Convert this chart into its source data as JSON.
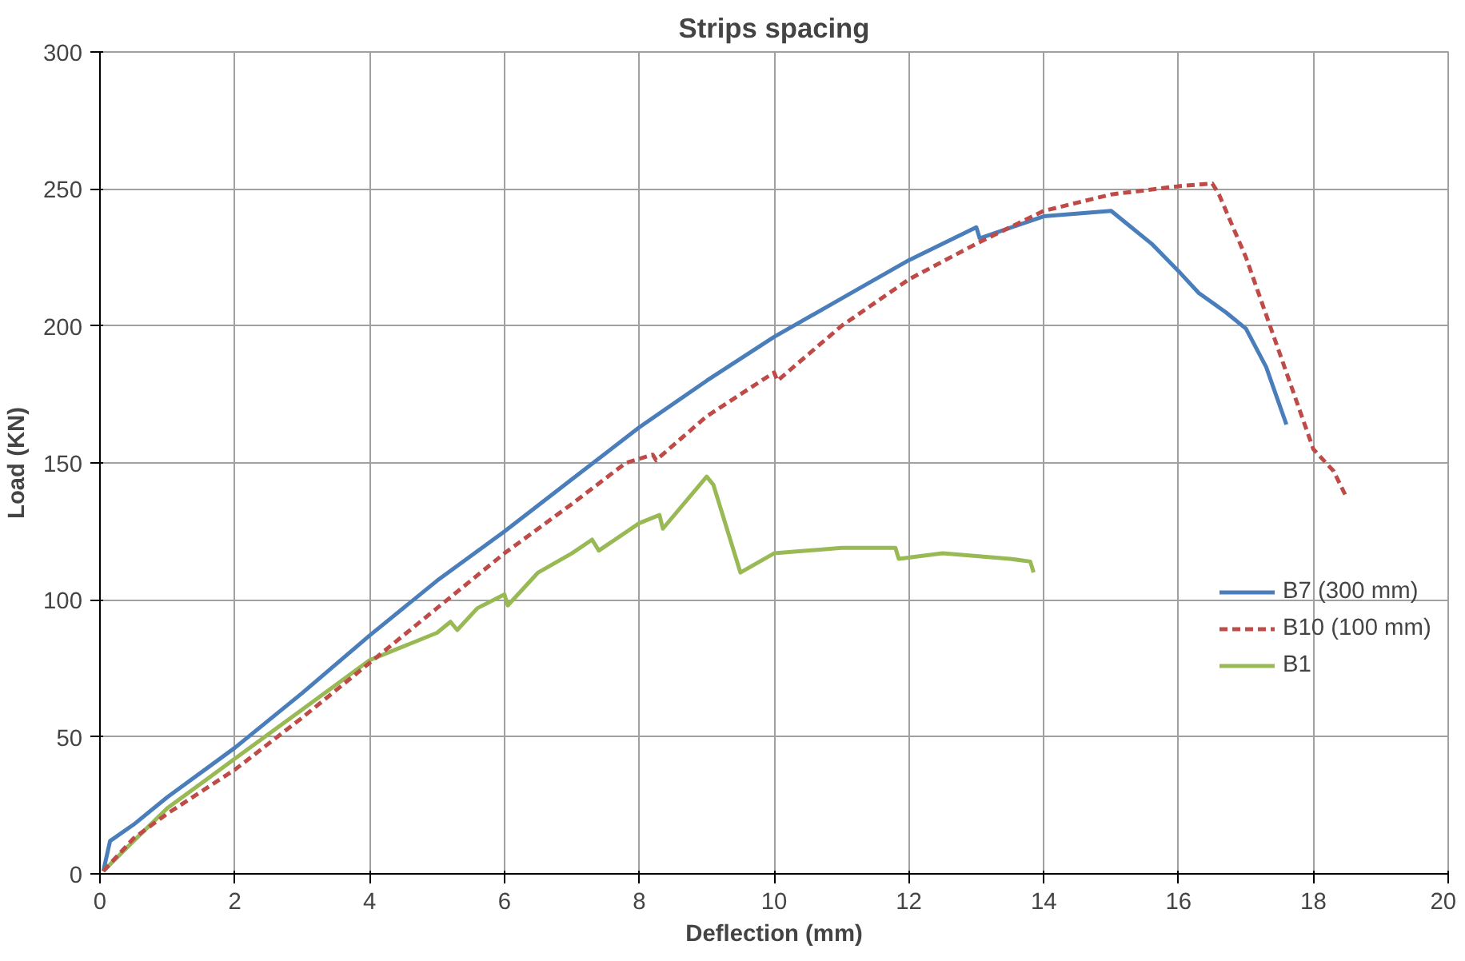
{
  "chart_data": {
    "type": "line",
    "title": "Strips spacing",
    "xlabel": "Deflection (mm)",
    "ylabel": "Load (KN)",
    "xlim": [
      0,
      20
    ],
    "xticks": [
      0,
      2,
      4,
      6,
      8,
      10,
      12,
      14,
      16,
      18,
      20
    ],
    "ylim": [
      0,
      300
    ],
    "yticks": [
      0,
      50,
      100,
      150,
      200,
      250,
      300
    ],
    "grid": true,
    "legend": "right",
    "series": [
      {
        "name": "B7 (300 mm)",
        "color": "#4a7ebb",
        "line_style": "solid",
        "x": [
          0.05,
          0.15,
          0.5,
          1,
          2,
          3,
          4,
          5,
          6,
          7,
          8,
          9,
          10,
          11,
          12,
          13,
          13.05,
          14,
          15,
          15.2,
          15.6,
          16,
          16.3,
          16.7,
          17,
          17.3,
          17.6
        ],
        "values": [
          1,
          12,
          18,
          28,
          46,
          66,
          87,
          107,
          125,
          144,
          163,
          180,
          196,
          210,
          224,
          236,
          232,
          240,
          242,
          238,
          230,
          220,
          212,
          205,
          199,
          185,
          164
        ]
      },
      {
        "name": "B10 (100 mm)",
        "color": "#be4b48",
        "line_style": "dashed",
        "x": [
          0.05,
          0.5,
          1,
          2,
          3,
          4,
          5,
          6,
          7,
          7.8,
          8.2,
          8.25,
          9,
          10,
          10.05,
          11,
          12,
          13,
          14,
          15,
          16,
          16.5,
          16.6,
          17,
          17.5,
          18,
          18.3,
          18.5
        ],
        "values": [
          1,
          13,
          22,
          38,
          57,
          77,
          97,
          117,
          135,
          150,
          153,
          151,
          167,
          183,
          180,
          200,
          217,
          230,
          242,
          248,
          251,
          252,
          248,
          225,
          190,
          155,
          147,
          137
        ]
      },
      {
        "name": "B1",
        "color": "#98b954",
        "line_style": "solid",
        "x": [
          0.05,
          0.5,
          1,
          2,
          3,
          4,
          5,
          5.2,
          5.3,
          5.6,
          6,
          6.05,
          6.5,
          7,
          7.3,
          7.4,
          8,
          8.3,
          8.35,
          9,
          9.1,
          9.5,
          10,
          11,
          11.8,
          11.85,
          12.5,
          13.5,
          13.8,
          13.85
        ],
        "values": [
          1,
          12,
          24,
          42,
          60,
          78,
          88,
          92,
          89,
          97,
          102,
          98,
          110,
          117,
          122,
          118,
          128,
          131,
          126,
          145,
          142,
          110,
          117,
          119,
          119,
          115,
          117,
          115,
          114,
          110
        ]
      }
    ]
  }
}
